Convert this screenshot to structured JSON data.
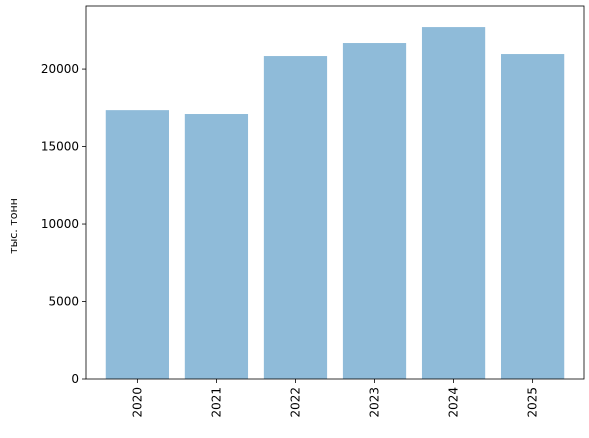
{
  "chart_data": {
    "type": "bar",
    "ylabel": "тыс. тонн",
    "categories": [
      "2020",
      "2021",
      "2022",
      "2023",
      "2024",
      "2025"
    ],
    "values": [
      17350,
      17100,
      20840,
      21680,
      22710,
      20970
    ],
    "color": "#8fbbd9",
    "ylim": [
      0,
      24070
    ],
    "yticks": [
      0,
      5000,
      10000,
      15000,
      20000
    ],
    "grid": false
  }
}
